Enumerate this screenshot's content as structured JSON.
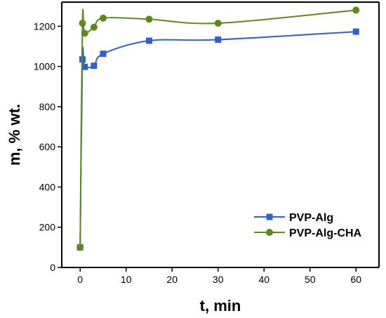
{
  "chart_data": {
    "type": "line",
    "xlabel": "t, min",
    "ylabel": "m, % wt.",
    "xlim": [
      -4,
      65
    ],
    "ylim": [
      0,
      1320
    ],
    "xticks": [
      0,
      10,
      20,
      30,
      40,
      50,
      60
    ],
    "yticks": [
      0,
      200,
      400,
      600,
      800,
      1000,
      1200
    ],
    "grid": false,
    "legend_position": "bottom-right",
    "series": [
      {
        "name": "PVP-Alg",
        "color": "#2f5fd0",
        "marker": "square",
        "x": [
          0,
          0.5,
          1,
          3,
          5,
          15,
          30,
          60
        ],
        "y": [
          100,
          1035,
          998,
          1003,
          1063,
          1128,
          1133,
          1173
        ]
      },
      {
        "name": "PVP-Alg-CHA",
        "color": "#5b8c1a",
        "marker": "circle",
        "x": [
          0,
          0.5,
          1,
          3,
          5,
          15,
          30,
          60
        ],
        "y": [
          100,
          1215,
          1165,
          1195,
          1240,
          1235,
          1215,
          1280
        ]
      }
    ]
  }
}
